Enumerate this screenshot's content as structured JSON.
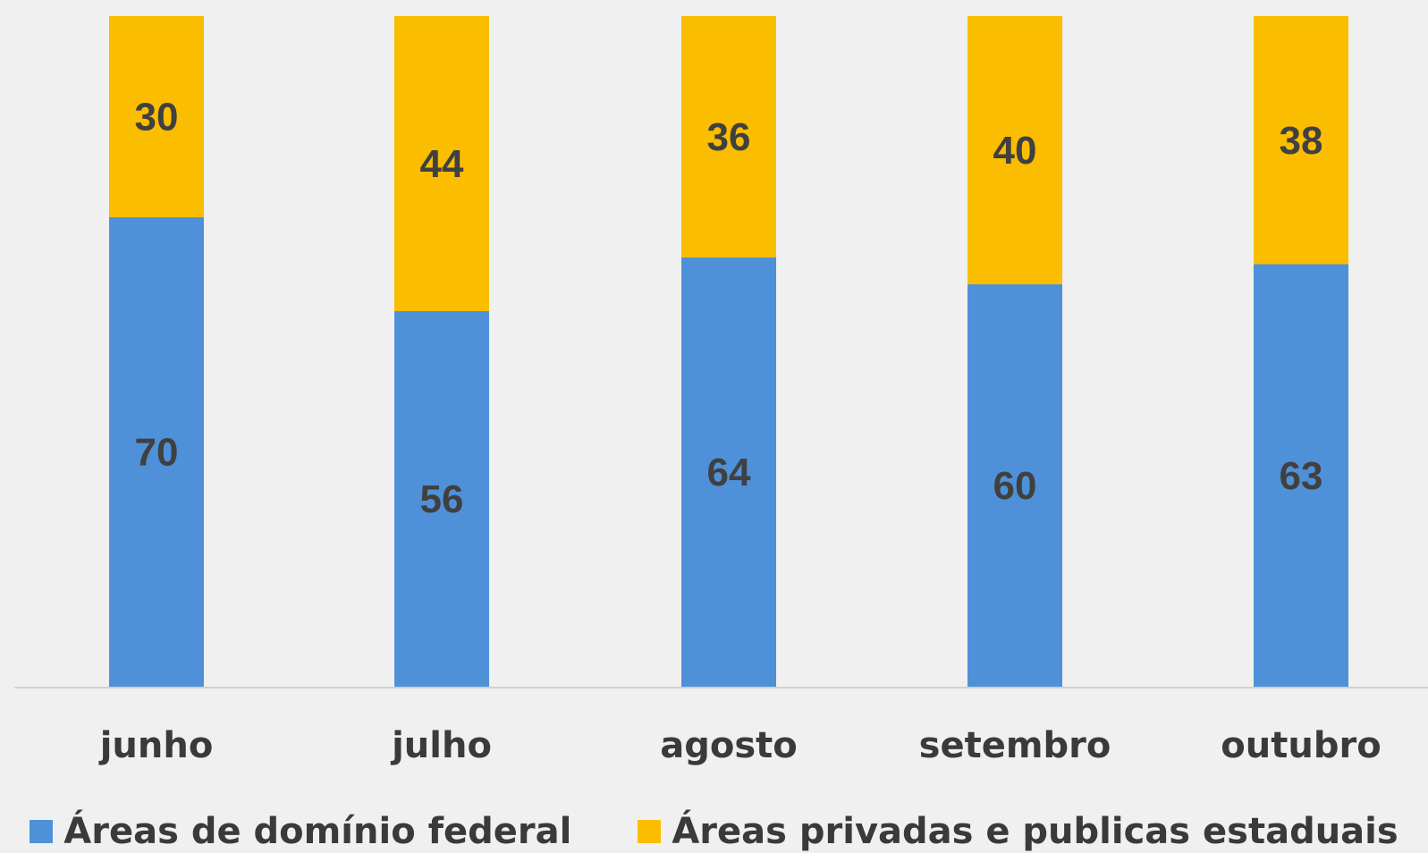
{
  "colors": {
    "federal": "#4f91d8",
    "privadas": "#fbbd00",
    "axis": "#d0d0d0",
    "background": "#f0f0f0"
  },
  "legend": {
    "federal": "Áreas de domínio federal",
    "privadas": "Áreas privadas e publicas estaduais"
  },
  "chart_data": {
    "type": "bar",
    "stacked": true,
    "categories": [
      "junho",
      "julho",
      "agosto",
      "setembro",
      "outubro"
    ],
    "series": [
      {
        "name": "Áreas de domínio federal",
        "values": [
          70,
          56,
          64,
          60,
          63
        ],
        "labels": [
          "70",
          "56",
          "64",
          "60",
          "63"
        ]
      },
      {
        "name": "Áreas privadas e publicas estaduais",
        "values": [
          30,
          44,
          36,
          40,
          38
        ],
        "labels": [
          "30",
          "44",
          "36",
          "40",
          "38"
        ]
      }
    ],
    "ylim": [
      0,
      100
    ],
    "grid": false,
    "legend_position": "bottom"
  }
}
